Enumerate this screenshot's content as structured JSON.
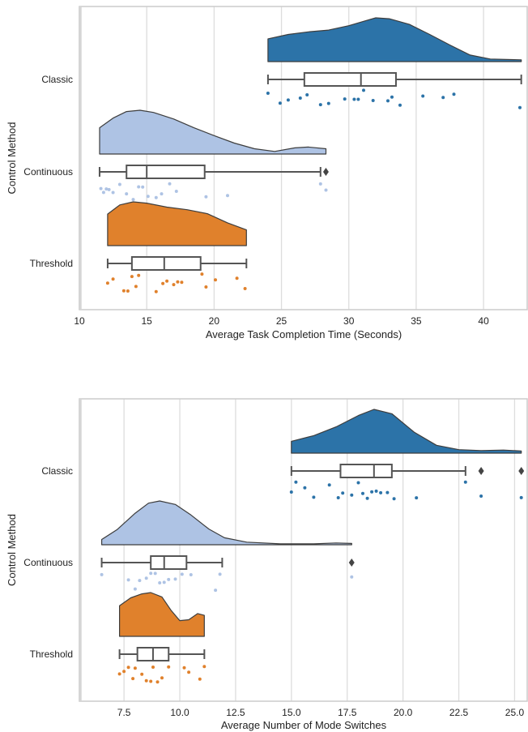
{
  "chart_data": [
    {
      "type": "raincloud",
      "xlabel": "Average Task Completion Time (Seconds)",
      "ylabel": "Control Method",
      "xlim": [
        10,
        43.3
      ],
      "xticks": [
        10,
        15,
        20,
        25,
        30,
        35,
        40
      ],
      "xtick_labels": [
        "10",
        "15",
        "20",
        "25",
        "30",
        "35",
        "40"
      ],
      "grid": "vertical",
      "categories": [
        "Classic",
        "Continuous",
        "Threshold"
      ],
      "series": [
        {
          "name": "Classic",
          "color": "#2c73a8",
          "box": {
            "whislo": 24.0,
            "q1": 26.7,
            "med": 30.9,
            "q3": 33.5,
            "whishi": 42.8,
            "fliers": []
          },
          "density": [
            [
              24.0,
              0.52
            ],
            [
              25.5,
              0.62
            ],
            [
              27.0,
              0.68
            ],
            [
              28.5,
              0.72
            ],
            [
              30.0,
              0.82
            ],
            [
              31.2,
              0.93
            ],
            [
              32.0,
              1.0
            ],
            [
              33.0,
              0.98
            ],
            [
              34.5,
              0.85
            ],
            [
              36.0,
              0.62
            ],
            [
              37.5,
              0.38
            ],
            [
              39.0,
              0.15
            ],
            [
              40.5,
              0.06
            ],
            [
              42.8,
              0.04
            ]
          ],
          "points": [
            24.0,
            24.9,
            25.5,
            26.4,
            26.9,
            27.9,
            28.5,
            29.7,
            30.4,
            30.7,
            31.1,
            31.8,
            32.9,
            33.2,
            33.8,
            35.5,
            37.0,
            37.8,
            42.7
          ]
        },
        {
          "name": "Continuous",
          "color": "#aec3e4",
          "box": {
            "whislo": 11.5,
            "q1": 13.5,
            "med": 15.0,
            "q3": 19.3,
            "whishi": 27.9,
            "fliers": [
              28.3
            ]
          },
          "density": [
            [
              11.5,
              0.6
            ],
            [
              12.5,
              0.82
            ],
            [
              13.5,
              0.97
            ],
            [
              14.5,
              1.0
            ],
            [
              15.5,
              0.95
            ],
            [
              17.0,
              0.8
            ],
            [
              18.5,
              0.6
            ],
            [
              20.0,
              0.42
            ],
            [
              21.5,
              0.25
            ],
            [
              23.0,
              0.12
            ],
            [
              24.5,
              0.06
            ],
            [
              26.0,
              0.14
            ],
            [
              27.0,
              0.16
            ],
            [
              28.3,
              0.12
            ]
          ],
          "points": [
            11.6,
            11.8,
            12.0,
            12.2,
            12.5,
            13.0,
            13.5,
            14.0,
            14.4,
            14.7,
            15.1,
            15.7,
            16.1,
            16.7,
            17.2,
            19.4,
            21.0,
            27.9,
            28.3
          ]
        },
        {
          "name": "Threshold",
          "color": "#e0812c",
          "box": {
            "whislo": 12.1,
            "q1": 13.9,
            "med": 16.3,
            "q3": 19.0,
            "whishi": 22.4,
            "fliers": []
          },
          "density": [
            [
              12.1,
              0.72
            ],
            [
              13.0,
              0.93
            ],
            [
              14.0,
              1.0
            ],
            [
              15.0,
              0.97
            ],
            [
              16.5,
              0.88
            ],
            [
              18.0,
              0.82
            ],
            [
              19.5,
              0.73
            ],
            [
              21.0,
              0.52
            ],
            [
              22.4,
              0.36
            ]
          ],
          "points": [
            12.1,
            12.5,
            13.3,
            13.6,
            13.9,
            14.2,
            14.4,
            15.7,
            16.2,
            16.5,
            17.0,
            17.3,
            17.6,
            19.1,
            19.4,
            20.1,
            21.7,
            22.3
          ]
        }
      ]
    },
    {
      "type": "raincloud",
      "xlabel": "Average Number of Mode Switches",
      "ylabel": "Control Method",
      "xlim": [
        5.5,
        25.6
      ],
      "xticks": [
        7.5,
        10.0,
        12.5,
        15.0,
        17.5,
        20.0,
        22.5,
        25.0
      ],
      "xtick_labels": [
        "7.5",
        "10.0",
        "12.5",
        "15.0",
        "17.5",
        "20.0",
        "22.5",
        "25.0"
      ],
      "grid": "vertical",
      "categories": [
        "Classic",
        "Continuous",
        "Threshold"
      ],
      "series": [
        {
          "name": "Classic",
          "color": "#2c73a8",
          "box": {
            "whislo": 15.0,
            "q1": 17.2,
            "med": 18.7,
            "q3": 19.5,
            "whishi": 22.8,
            "fliers": [
              23.5,
              25.3
            ]
          },
          "density": [
            [
              15.0,
              0.27
            ],
            [
              16.0,
              0.4
            ],
            [
              17.0,
              0.6
            ],
            [
              18.0,
              0.86
            ],
            [
              18.7,
              1.0
            ],
            [
              19.5,
              0.9
            ],
            [
              20.5,
              0.48
            ],
            [
              21.5,
              0.18
            ],
            [
              22.5,
              0.08
            ],
            [
              23.5,
              0.06
            ],
            [
              24.5,
              0.07
            ],
            [
              25.3,
              0.05
            ]
          ],
          "points": [
            15.0,
            15.2,
            15.6,
            16.0,
            16.7,
            17.1,
            17.3,
            17.7,
            18.0,
            18.2,
            18.4,
            18.6,
            18.8,
            19.0,
            19.3,
            19.6,
            20.6,
            22.8,
            23.5,
            25.3
          ]
        },
        {
          "name": "Continuous",
          "color": "#aec3e4",
          "box": {
            "whislo": 6.5,
            "q1": 8.7,
            "med": 9.3,
            "q3": 10.3,
            "whishi": 11.9,
            "fliers": [
              17.7
            ]
          },
          "density": [
            [
              6.5,
              0.12
            ],
            [
              7.2,
              0.35
            ],
            [
              8.0,
              0.72
            ],
            [
              8.6,
              0.95
            ],
            [
              9.1,
              1.0
            ],
            [
              9.8,
              0.92
            ],
            [
              10.5,
              0.68
            ],
            [
              11.3,
              0.36
            ],
            [
              12.0,
              0.16
            ],
            [
              13.0,
              0.06
            ],
            [
              14.5,
              0.02
            ],
            [
              16.0,
              0.02
            ],
            [
              17.0,
              0.04
            ],
            [
              17.7,
              0.03
            ]
          ],
          "points": [
            6.5,
            7.7,
            8.0,
            8.2,
            8.5,
            8.7,
            8.9,
            9.1,
            9.3,
            9.5,
            9.8,
            10.1,
            10.5,
            11.6,
            11.8,
            17.7
          ]
        },
        {
          "name": "Threshold",
          "color": "#e0812c",
          "box": {
            "whislo": 7.3,
            "q1": 8.1,
            "med": 8.8,
            "q3": 9.5,
            "whishi": 11.1,
            "fliers": []
          },
          "density": [
            [
              7.3,
              0.7
            ],
            [
              7.8,
              0.88
            ],
            [
              8.3,
              0.97
            ],
            [
              8.7,
              1.0
            ],
            [
              9.2,
              0.9
            ],
            [
              9.6,
              0.6
            ],
            [
              10.0,
              0.36
            ],
            [
              10.4,
              0.38
            ],
            [
              10.8,
              0.52
            ],
            [
              11.1,
              0.48
            ]
          ],
          "points": [
            7.3,
            7.5,
            7.7,
            7.9,
            8.0,
            8.3,
            8.5,
            8.7,
            8.8,
            9.0,
            9.2,
            9.5,
            10.2,
            10.4,
            10.9,
            11.1
          ]
        }
      ]
    }
  ]
}
